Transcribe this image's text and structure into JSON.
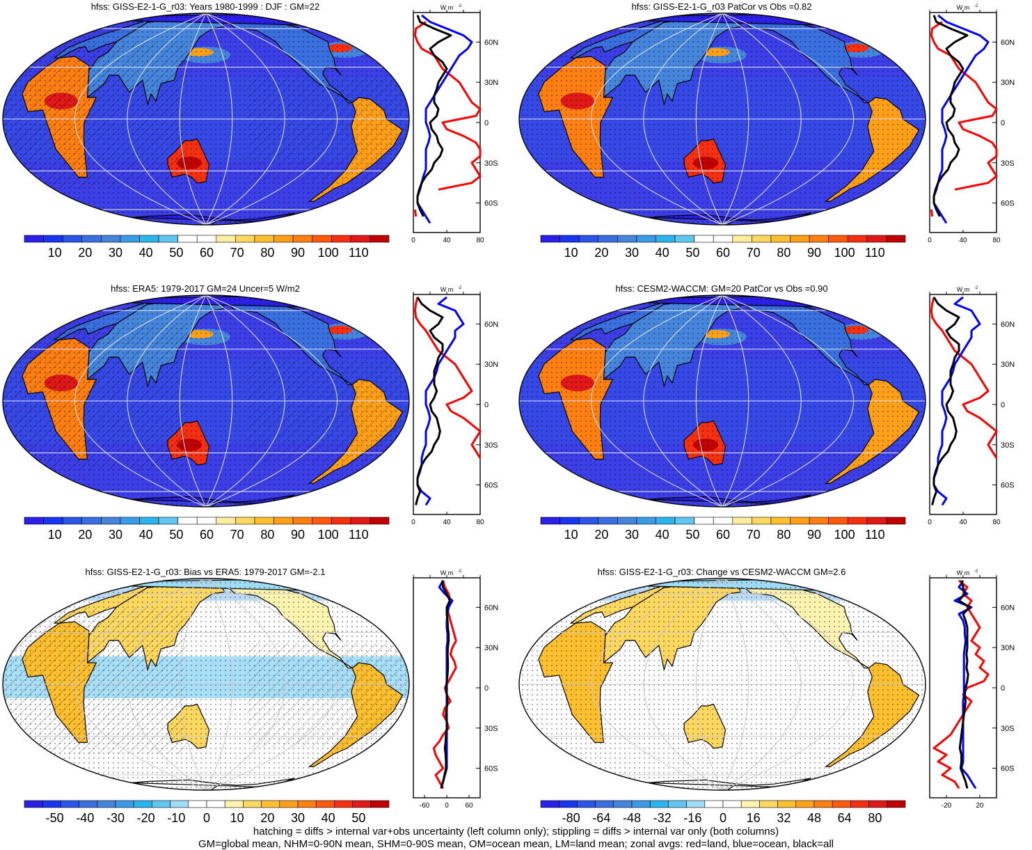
{
  "panels": [
    {
      "id": "p1",
      "title": "hfss: GISS-E2-1-G_r03: Years 1980-1999 : DJF : GM=22",
      "kind": "abs",
      "hatch": true,
      "cbar_labels": [
        "10",
        "20",
        "30",
        "40",
        "50",
        "60",
        "70",
        "80",
        "90",
        "100",
        "110"
      ],
      "zonal_ticks": [
        "0",
        "40",
        "80"
      ],
      "zonal_range": [
        0,
        80
      ]
    },
    {
      "id": "p2",
      "title": "hfss: GISS-E2-1-G_r03 PatCor vs Obs =0.82",
      "kind": "abs",
      "hatch": false,
      "cbar_labels": [
        "10",
        "20",
        "30",
        "40",
        "50",
        "60",
        "70",
        "80",
        "90",
        "100",
        "110"
      ],
      "zonal_ticks": [
        "0",
        "40",
        "80"
      ],
      "zonal_range": [
        0,
        80
      ]
    },
    {
      "id": "p3",
      "title": "hfss: ERA5: 1979-2017 GM=24 Uncer=5 W/m2",
      "kind": "abs",
      "hatch": true,
      "cbar_labels": [
        "10",
        "20",
        "30",
        "40",
        "50",
        "60",
        "70",
        "80",
        "90",
        "100",
        "110"
      ],
      "zonal_ticks": [
        "0",
        "40",
        "80"
      ],
      "zonal_range": [
        0,
        80
      ]
    },
    {
      "id": "p4",
      "title": "hfss: CESM2-WACCM: GM=20 PatCor vs Obs =0.90",
      "kind": "abs",
      "hatch": false,
      "cbar_labels": [
        "10",
        "20",
        "30",
        "40",
        "50",
        "60",
        "70",
        "80",
        "90",
        "100",
        "110"
      ],
      "zonal_ticks": [
        "0",
        "40",
        "80"
      ],
      "zonal_range": [
        0,
        80
      ]
    },
    {
      "id": "p5",
      "title": "hfss: GISS-E2-1-G_r03: Bias vs ERA5: 1979-2017 GM=-2.1",
      "kind": "diff",
      "hatch": true,
      "cbar_labels": [
        "-50",
        "-40",
        "-30",
        "-20",
        "-10",
        "0",
        "10",
        "20",
        "30",
        "40",
        "50"
      ],
      "zonal_ticks": [
        "-60",
        "0",
        "60"
      ],
      "zonal_range": [
        -90,
        90
      ]
    },
    {
      "id": "p6",
      "title": "hfss: GISS-E2-1-G_r03: Change vs CESM2-WACCM GM=2.6",
      "kind": "diff",
      "hatch": false,
      "cbar_labels": [
        "-80",
        "-64",
        "-48",
        "-32",
        "-16",
        "0",
        "16",
        "32",
        "48",
        "64",
        "80"
      ],
      "zonal_ticks": [
        "-20",
        "20"
      ],
      "zonal_range": [
        -40,
        40
      ]
    }
  ],
  "lat_labels": [
    "60N",
    "30N",
    "0",
    "30S",
    "60S"
  ],
  "unit_label": "W m",
  "unit_exp": "-2",
  "palette_abs": [
    "#2c1fe8",
    "#1a35f0",
    "#2a55e8",
    "#3a6fe0",
    "#4585dc",
    "#3a9be6",
    "#2cb4ee",
    "#60c8f0",
    "#ffffff",
    "#ffffff",
    "#ffeea0",
    "#ffd860",
    "#ffc030",
    "#ffa018",
    "#ff7f10",
    "#ff5a0a",
    "#f53010",
    "#e01818",
    "#c00000"
  ],
  "palette_diff": [
    "#2c1fe8",
    "#1a35f0",
    "#2a55e8",
    "#3a6fe0",
    "#4585dc",
    "#3a9be6",
    "#2cb4ee",
    "#60c8f0",
    "#9fdcf8",
    "#ffffff",
    "#ffffff",
    "#fff3b0",
    "#ffd860",
    "#ffc030",
    "#ffa018",
    "#ff7f10",
    "#ff5a0a",
    "#f53010",
    "#e01818",
    "#c00000"
  ],
  "series_colors": {
    "land": "#ff0000",
    "ocean": "#0000ff",
    "all": "#000000"
  },
  "zonal": {
    "abs_model": {
      "lat": [
        80,
        75,
        70,
        65,
        60,
        55,
        50,
        45,
        40,
        35,
        30,
        25,
        20,
        15,
        10,
        5,
        0,
        -5,
        -10,
        -15,
        -20,
        -25,
        -30,
        -35,
        -40,
        -45,
        -50,
        -55,
        -60,
        -65,
        -70,
        -75
      ],
      "land": [
        null,
        15,
        3,
        2,
        5,
        10,
        25,
        30,
        35,
        45,
        55,
        60,
        65,
        70,
        80,
        75,
        35,
        40,
        60,
        75,
        85,
        80,
        70,
        75,
        80,
        70,
        30,
        null,
        null,
        2,
        3,
        null
      ],
      "ocean": [
        10,
        20,
        40,
        60,
        70,
        65,
        55,
        50,
        45,
        40,
        35,
        30,
        25,
        20,
        15,
        15,
        15,
        18,
        20,
        18,
        15,
        15,
        15,
        15,
        12,
        10,
        8,
        5,
        5,
        10,
        15,
        20
      ],
      "all": [
        5,
        8,
        25,
        45,
        30,
        20,
        25,
        35,
        40,
        35,
        30,
        28,
        25,
        25,
        30,
        28,
        20,
        22,
        28,
        30,
        35,
        32,
        25,
        22,
        15,
        10,
        7,
        5,
        5,
        8,
        12,
        null
      ]
    },
    "abs_obs": {
      "lat": [
        80,
        75,
        70,
        65,
        60,
        55,
        50,
        45,
        40,
        35,
        30,
        25,
        20,
        15,
        10,
        5,
        0,
        -5,
        -10,
        -15,
        -20,
        -25,
        -30,
        -35,
        -40,
        -45,
        -50,
        -55,
        -60,
        -65,
        -70,
        -75
      ],
      "land": [
        5,
        3,
        2,
        3,
        8,
        15,
        20,
        25,
        30,
        40,
        50,
        55,
        60,
        65,
        70,
        60,
        40,
        45,
        60,
        70,
        80,
        75,
        70,
        75,
        80,
        null,
        null,
        70,
        null,
        null,
        3,
        null
      ],
      "ocean": [
        40,
        30,
        50,
        55,
        60,
        50,
        50,
        45,
        40,
        35,
        30,
        28,
        25,
        20,
        15,
        15,
        15,
        18,
        20,
        18,
        15,
        15,
        15,
        12,
        10,
        10,
        8,
        5,
        5,
        10,
        20,
        15
      ],
      "all": [
        5,
        10,
        20,
        35,
        30,
        20,
        25,
        35,
        35,
        30,
        28,
        25,
        25,
        25,
        28,
        25,
        20,
        22,
        28,
        30,
        32,
        30,
        25,
        22,
        15,
        10,
        7,
        5,
        5,
        8,
        5,
        3
      ]
    },
    "bias": {
      "lat": [
        80,
        75,
        70,
        65,
        60,
        55,
        50,
        45,
        40,
        35,
        30,
        25,
        20,
        15,
        10,
        5,
        0,
        -5,
        -10,
        -15,
        -20,
        -25,
        -30,
        -35,
        -40,
        -45,
        -50,
        -55,
        -60,
        -65,
        -70,
        -75
      ],
      "land": [
        -10,
        -5,
        5,
        10,
        0,
        5,
        10,
        15,
        20,
        25,
        15,
        10,
        20,
        25,
        15,
        5,
        -5,
        0,
        10,
        -5,
        -10,
        0,
        5,
        -10,
        -20,
        -35,
        -30,
        -20,
        -10,
        -30,
        -20,
        -10
      ],
      "ocean": [
        -10,
        -20,
        -5,
        15,
        5,
        2,
        0,
        0,
        2,
        2,
        0,
        0,
        0,
        0,
        0,
        0,
        0,
        0,
        0,
        0,
        0,
        0,
        0,
        0,
        0,
        0,
        0,
        0,
        0,
        -5,
        -10,
        -15
      ],
      "all": [
        -12,
        -10,
        0,
        8,
        0,
        0,
        2,
        3,
        5,
        5,
        3,
        2,
        3,
        3,
        2,
        0,
        -2,
        0,
        2,
        0,
        -2,
        0,
        0,
        -2,
        -3,
        -5,
        -3,
        -2,
        -2,
        -6,
        -10,
        -15
      ]
    },
    "change": {
      "lat": [
        80,
        75,
        70,
        65,
        60,
        55,
        50,
        45,
        40,
        35,
        30,
        25,
        20,
        15,
        10,
        5,
        0,
        -5,
        -10,
        -15,
        -20,
        -25,
        -30,
        -35,
        -40,
        -45,
        -50,
        -55,
        -60,
        -65,
        -70,
        -75
      ],
      "land": [
        -5,
        5,
        0,
        10,
        5,
        10,
        15,
        20,
        15,
        10,
        20,
        15,
        25,
        20,
        30,
        25,
        5,
        0,
        10,
        5,
        0,
        -5,
        -10,
        -15,
        -25,
        -35,
        -20,
        -30,
        -15,
        -25,
        -10,
        -5
      ],
      "ocean": [
        0,
        -5,
        5,
        -10,
        10,
        -5,
        0,
        2,
        2,
        3,
        2,
        1,
        1,
        1,
        1,
        1,
        1,
        1,
        0,
        0,
        0,
        0,
        0,
        0,
        0,
        0,
        0,
        0,
        -2,
        5,
        10,
        15
      ],
      "all": [
        -2,
        0,
        2,
        -5,
        8,
        0,
        3,
        5,
        5,
        5,
        5,
        4,
        5,
        4,
        6,
        5,
        3,
        2,
        3,
        2,
        1,
        0,
        -1,
        -2,
        -3,
        -4,
        -2,
        -2,
        -3,
        0,
        3,
        5
      ]
    }
  },
  "footer_line1": "hatching = diffs > internal var+obs uncertainty (left column only); stippling = diffs > internal var only (both columns)",
  "footer_line2": "GM=global mean, NHM=0-90N mean, SHM=0-90S mean, OM=ocean mean, LM=land mean; zonal avgs: red=land, blue=ocean, black=all"
}
